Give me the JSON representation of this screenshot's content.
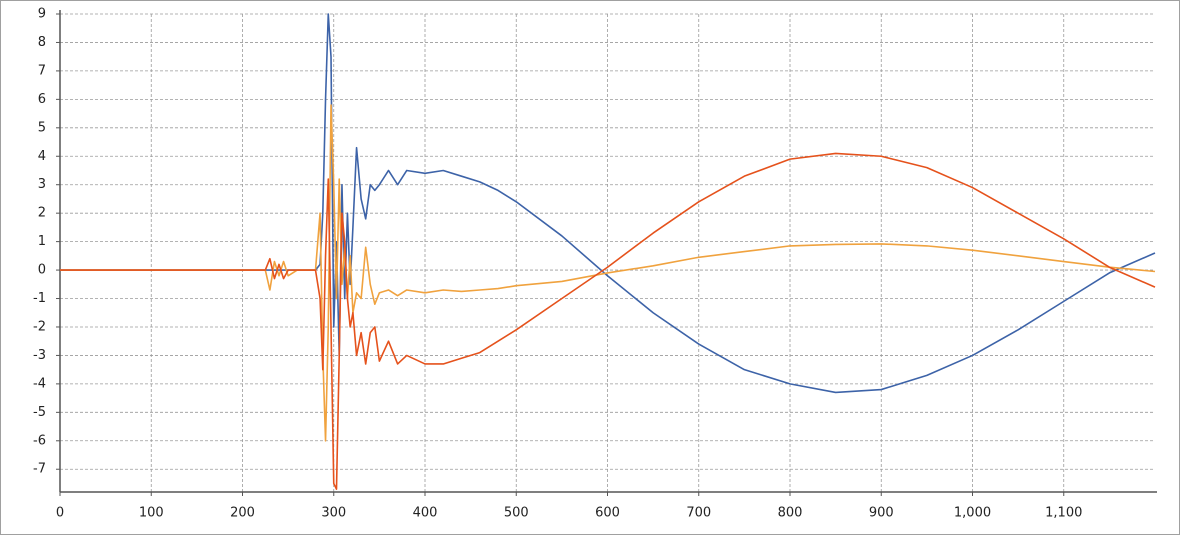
{
  "chart_data": {
    "type": "line",
    "x": [
      0,
      100,
      200,
      225,
      230,
      235,
      240,
      245,
      250,
      260,
      280,
      285,
      288,
      291,
      294,
      297,
      300,
      303,
      306,
      309,
      312,
      315,
      318,
      321,
      325,
      330,
      335,
      340,
      345,
      350,
      360,
      370,
      380,
      400,
      420,
      440,
      460,
      480,
      500,
      550,
      600,
      650,
      700,
      750,
      800,
      850,
      900,
      950,
      1000,
      1050,
      1100,
      1150,
      1200
    ],
    "series": [
      {
        "color": "#3d63a8",
        "values": [
          0,
          0,
          0,
          0,
          0,
          0,
          0,
          0,
          0,
          0,
          0,
          0.2,
          2,
          6,
          9,
          7.5,
          -2,
          1,
          -3,
          3,
          -1,
          2,
          -0.5,
          1.5,
          4.3,
          2.5,
          1.8,
          3.0,
          2.8,
          3.0,
          3.5,
          3.0,
          3.5,
          3.4,
          3.5,
          3.3,
          3.1,
          2.8,
          2.4,
          1.2,
          -0.2,
          -1.5,
          -2.6,
          -3.5,
          -4.0,
          -4.3,
          -4.2,
          -3.7,
          -3.0,
          -2.1,
          -1.1,
          -0.1,
          0.6
        ]
      },
      {
        "color": "#f0a23e",
        "values": [
          0,
          0,
          0,
          0,
          -0.7,
          0.3,
          -0.2,
          0.3,
          -0.2,
          0,
          0,
          2,
          -3,
          -6,
          -2,
          5.8,
          3,
          -1,
          3.2,
          -0.5,
          0.8,
          -1,
          0.5,
          -1.5,
          -0.8,
          -1.0,
          0.8,
          -0.5,
          -1.2,
          -0.8,
          -0.7,
          -0.9,
          -0.7,
          -0.8,
          -0.7,
          -0.75,
          -0.7,
          -0.65,
          -0.55,
          -0.4,
          -0.1,
          0.15,
          0.45,
          0.65,
          0.85,
          0.9,
          0.92,
          0.85,
          0.7,
          0.5,
          0.3,
          0.1,
          -0.05
        ]
      },
      {
        "color": "#e5521c",
        "values": [
          0,
          0,
          0,
          0,
          0.4,
          -0.3,
          0.2,
          -0.3,
          0,
          0,
          0,
          -1,
          -3.5,
          0.5,
          3.2,
          -2,
          -7.5,
          -7.7,
          -3,
          2,
          1,
          -1,
          -2,
          -1.5,
          -3,
          -2.2,
          -3.3,
          -2.2,
          -2.0,
          -3.2,
          -2.5,
          -3.3,
          -3.0,
          -3.3,
          -3.3,
          -3.1,
          -2.9,
          -2.5,
          -2.1,
          -1.0,
          0.1,
          1.3,
          2.4,
          3.3,
          3.9,
          4.1,
          4.0,
          3.6,
          2.9,
          2.0,
          1.1,
          0.1,
          -0.6
        ]
      }
    ],
    "xlim": [
      0,
      1200
    ],
    "ylim": [
      -7.8,
      9
    ],
    "xticks": [
      0,
      100,
      200,
      300,
      400,
      500,
      600,
      700,
      800,
      900,
      {
        "value": 1000,
        "label": "1,000"
      },
      {
        "value": 1100,
        "label": "1,100"
      }
    ],
    "yticks": [
      -7,
      -6,
      -5,
      -4,
      -3,
      -2,
      -1,
      0,
      1,
      2,
      3,
      4,
      5,
      6,
      7,
      8,
      9
    ],
    "grid": true
  }
}
